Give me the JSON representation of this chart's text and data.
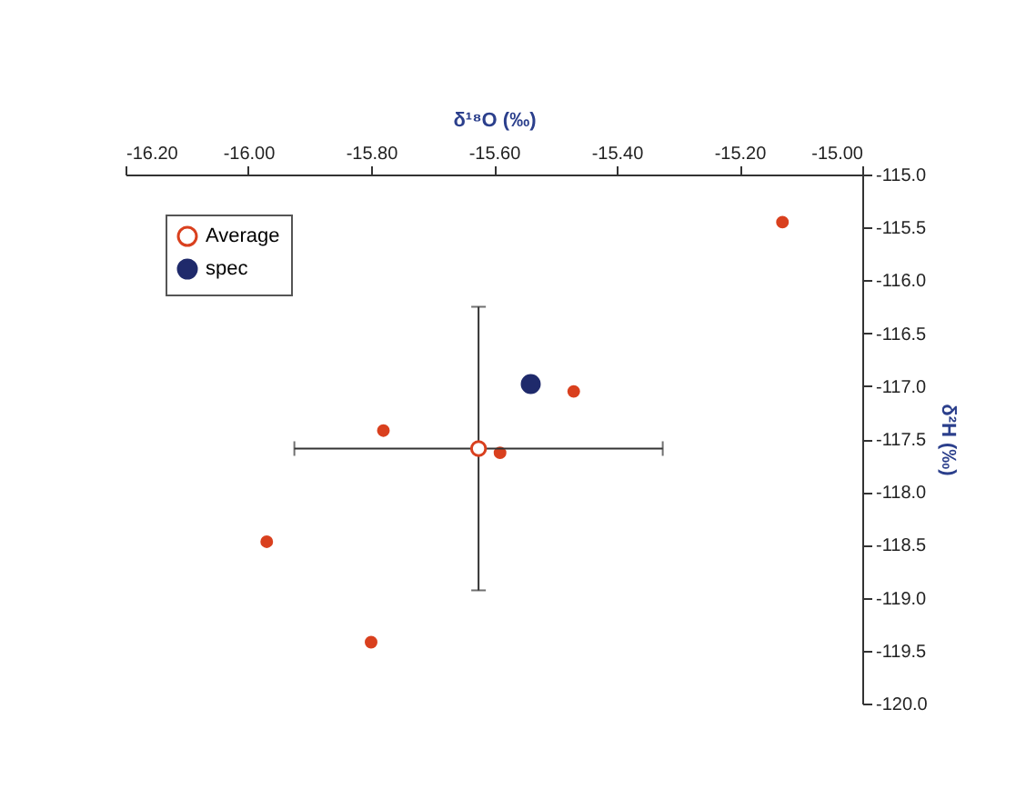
{
  "chart_data": {
    "type": "scatter",
    "xlabel": "δ¹⁸O (‰)",
    "ylabel": "δ²H (‰)",
    "xlim": [
      -16.2,
      -15.0
    ],
    "xticks": [
      {
        "value": -16.2,
        "label": "-16.20"
      },
      {
        "value": -16.0,
        "label": "-16.00"
      },
      {
        "value": -15.8,
        "label": "-15.80"
      },
      {
        "value": -15.6,
        "label": "-15.60"
      },
      {
        "value": -15.4,
        "label": "-15.40"
      },
      {
        "value": -15.2,
        "label": "-15.20"
      },
      {
        "value": -15.0,
        "label": "-15.00"
      }
    ],
    "ylim": [
      -120.0,
      -115.0
    ],
    "yticks": [
      {
        "value": -120,
        "label": "-120.0"
      },
      {
        "value": -119.5,
        "label": "-119.5"
      },
      {
        "value": -119,
        "label": "-119.0"
      },
      {
        "value": -118.5,
        "label": "-118.5"
      },
      {
        "value": -118,
        "label": "-118.0"
      },
      {
        "value": -117.5,
        "label": "-117.5"
      },
      {
        "value": -117,
        "label": "-117.0"
      },
      {
        "value": -116.5,
        "label": "-116.5"
      },
      {
        "value": -116,
        "label": "-116.0"
      },
      {
        "value": -115.5,
        "label": "-115.5"
      },
      {
        "value": -115,
        "label": "-115.0"
      }
    ],
    "marker": "circle",
    "grid": false,
    "legend": "top left",
    "series": [
      {
        "color": "#d9401e",
        "x": [
          -15.13,
          -15.78,
          -15.47,
          -15.59,
          -15.97,
          -15.8
        ],
        "values": [
          -115.45,
          -117.42,
          -117.05,
          -117.63,
          -118.47,
          -119.42
        ]
      },
      {
        "name": "Average",
        "color": "#d9401e",
        "x": [
          -15.625
        ],
        "values": [
          -117.59
        ],
        "errors": [
          1.34
        ],
        "xerrors": [
          0.3
        ]
      },
      {
        "name": "spec",
        "color": "#1f2a6b",
        "x": [
          -15.54
        ],
        "values": [
          -116.98
        ]
      }
    ]
  }
}
